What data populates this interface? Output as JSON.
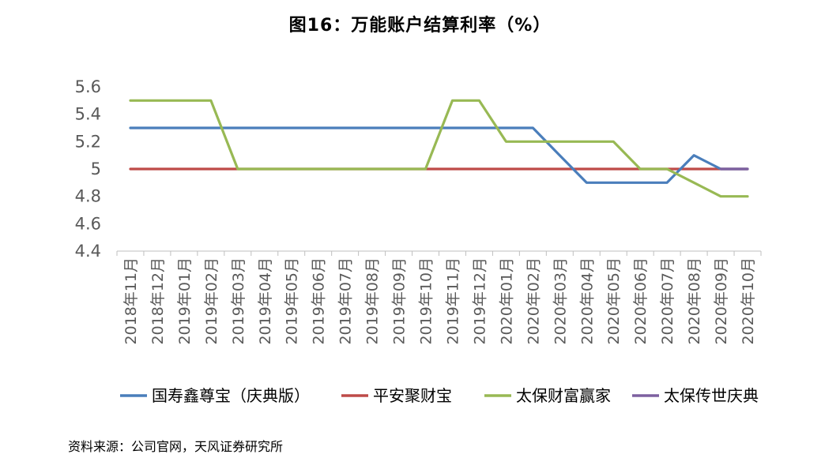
{
  "chart_data": {
    "type": "line",
    "title": "图16：万能账户结算利率（%）",
    "source": "资料来源：公司官网，天风证券研究所",
    "categories": [
      "2018年11月",
      "2018年12月",
      "2019年01月",
      "2019年02月",
      "2019年03月",
      "2019年04月",
      "2019年05月",
      "2019年06月",
      "2019年07月",
      "2019年08月",
      "2019年09月",
      "2019年10月",
      "2019年11月",
      "2019年12月",
      "2020年01月",
      "2020年02月",
      "2020年03月",
      "2020年04月",
      "2020年05月",
      "2020年06月",
      "2020年07月",
      "2020年08月",
      "2020年09月",
      "2020年10月"
    ],
    "y_ticks": [
      "5.6",
      "5.4",
      "5.2",
      "5",
      "4.8",
      "4.6",
      "4.4"
    ],
    "ylim": [
      4.4,
      5.6
    ],
    "grid": false,
    "legend_position": "bottom",
    "series": [
      {
        "name": "国寿鑫尊宝（庆典版）",
        "color": "#4a7ebb",
        "values": [
          5.3,
          5.3,
          5.3,
          5.3,
          5.3,
          5.3,
          5.3,
          5.3,
          5.3,
          5.3,
          5.3,
          5.3,
          5.3,
          5.3,
          5.3,
          5.3,
          5.1,
          4.9,
          4.9,
          4.9,
          4.9,
          5.1,
          5.0,
          5.0
        ]
      },
      {
        "name": "平安聚财宝",
        "color": "#be4b48",
        "values": [
          5.0,
          5.0,
          5.0,
          5.0,
          5.0,
          5.0,
          5.0,
          5.0,
          5.0,
          5.0,
          5.0,
          5.0,
          5.0,
          5.0,
          5.0,
          5.0,
          5.0,
          5.0,
          5.0,
          5.0,
          5.0,
          5.0,
          5.0,
          5.0
        ]
      },
      {
        "name": "太保财富赢家",
        "color": "#98b954",
        "values": [
          5.5,
          5.5,
          5.5,
          5.5,
          5.0,
          5.0,
          5.0,
          5.0,
          5.0,
          5.0,
          5.0,
          5.0,
          5.5,
          5.5,
          5.2,
          5.2,
          5.2,
          5.2,
          5.2,
          5.0,
          5.0,
          4.9,
          4.8,
          4.8
        ]
      },
      {
        "name": "太保传世庆典",
        "color": "#7d60a0",
        "values": [
          null,
          null,
          null,
          null,
          null,
          null,
          null,
          null,
          null,
          null,
          null,
          null,
          null,
          null,
          null,
          null,
          null,
          null,
          null,
          null,
          null,
          null,
          5.0,
          5.0
        ]
      }
    ]
  }
}
